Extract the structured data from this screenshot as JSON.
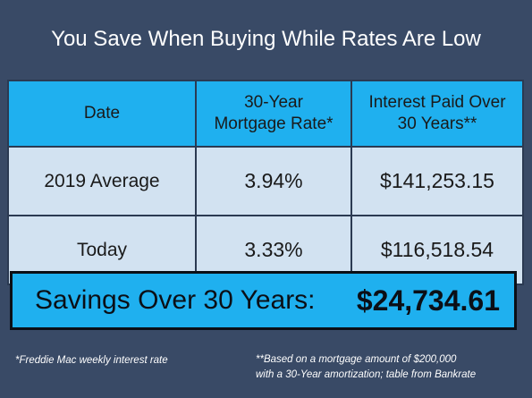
{
  "title": "You Save When Buying While Rates Are Low",
  "chart_data": {
    "type": "table",
    "columns": [
      "Date",
      "30-Year Mortgage Rate*",
      "Interest Paid Over 30 Years**"
    ],
    "column_lines": [
      [
        "Date"
      ],
      [
        "30-Year",
        "Mortgage Rate*"
      ],
      [
        "Interest Paid Over",
        "30 Years**"
      ]
    ],
    "rows": [
      [
        "2019 Average",
        "3.94%",
        "$141,253.15"
      ],
      [
        "Today",
        "3.33%",
        "$116,518.54"
      ]
    ],
    "summary": {
      "label": "Savings Over 30 Years:",
      "value": "$24,734.61"
    }
  },
  "footnotes": {
    "left": "*Freddie Mac weekly interest rate",
    "right_line1": "**Based on a mortgage amount of $200,000",
    "right_line2": "with a 30-Year amortization; table from Bankrate"
  },
  "colors": {
    "background": "#394a66",
    "header": "#1fb0ef",
    "cell": "#d2e2f1"
  }
}
